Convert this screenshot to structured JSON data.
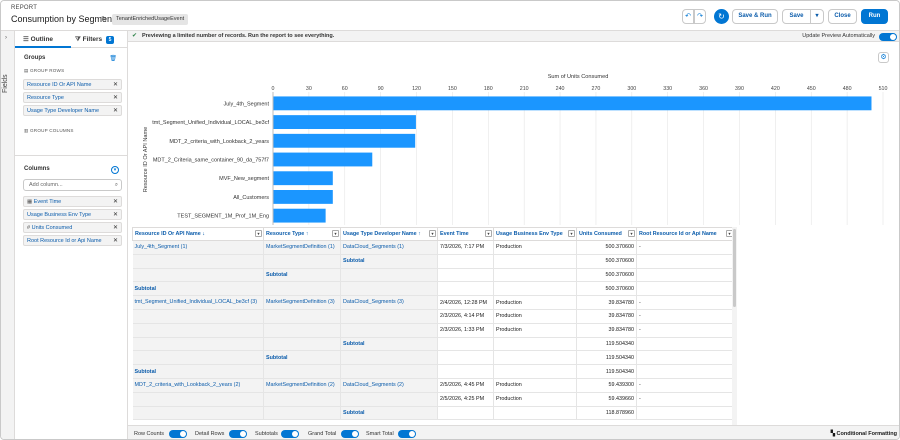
{
  "header": {
    "eyebrow": "REPORT",
    "title": "Consumption by Segment",
    "report_type": "TenantEnrichedUsageEvent",
    "save_run_label": "Save & Run",
    "save_label": "Save",
    "close_label": "Close",
    "run_label": "Run"
  },
  "rail": {
    "label": "Fields"
  },
  "panel": {
    "tab_outline": "Outline",
    "tab_filters": "Filters",
    "filters_count": "5",
    "groups_title": "Groups",
    "group_rows_label": "GROUP ROWS",
    "group_rows": [
      {
        "label": "Resource ID Or API Name"
      },
      {
        "label": "Resource Type"
      },
      {
        "label": "Usage Type Developer Name"
      }
    ],
    "group_columns_label": "GROUP COLUMNS",
    "columns_title": "Columns",
    "add_column_placeholder": "Add column...",
    "columns": [
      {
        "label": "Event Time",
        "type_icon": "calendar-icon"
      },
      {
        "label": "Usage Business Env Type",
        "type_icon": ""
      },
      {
        "label": "Units Consumed",
        "type_icon": "number-icon"
      },
      {
        "label": "Root Resource Id or Api Name",
        "type_icon": ""
      }
    ]
  },
  "preview": {
    "message": "Previewing a limited number of records. Run the report to see everything.",
    "update_label": "Update Preview Automatically"
  },
  "colors": {
    "brand": "#0176d3",
    "bar": "#1b96ff",
    "link": "#0b5cab"
  },
  "chart_data": {
    "type": "bar",
    "orientation": "horizontal",
    "title": "Sum of Units Consumed",
    "ylabel": "Resource ID Or API Name",
    "xlim": [
      0,
      510
    ],
    "xticks": [
      0,
      30,
      60,
      90,
      120,
      150,
      180,
      210,
      240,
      270,
      300,
      330,
      360,
      390,
      420,
      450,
      480,
      510
    ],
    "categories": [
      "July_4th_Segment",
      "tmt_Segment_Unified_Individual_LOCAL_be3cf",
      "MDT_2_criteria_with_Lookback_2_years",
      "MDT_2_Criteria_same_container_90_da_757f7",
      "MVF_New_segment",
      "All_Customers",
      "TEST_SEGMENT_1M_Prof_1M_Eng"
    ],
    "values": [
      500.37,
      119.5,
      118.88,
      83,
      50,
      50,
      44
    ],
    "grid": true
  },
  "table": {
    "headers": [
      "Resource ID Or API Name ↓",
      "Resource Type ↑",
      "Usage Type Developer Name ↑",
      "Event Time",
      "Usage Business Env Type",
      "Units Consumed",
      "Root Resource Id or Api Name"
    ],
    "rows": [
      [
        "July_4th_Segment (1)",
        "MarketSegmentDefinition (1)",
        "DataCloud_Segments (1)",
        "7/3/2026, 7:17 PM",
        "Production",
        "500.370600",
        "-"
      ],
      [
        "",
        "",
        "Subtotal",
        "",
        "",
        "500.370600",
        ""
      ],
      [
        "",
        "Subtotal",
        "",
        "",
        "",
        "500.370600",
        ""
      ],
      [
        "Subtotal",
        "",
        "",
        "",
        "",
        "500.370600",
        ""
      ],
      [
        "tmt_Segment_Unified_Individual_LOCAL_be3cf (3)",
        "MarketSegmentDefinition (3)",
        "DataCloud_Segments (3)",
        "2/4/2026, 12:28 PM",
        "Production",
        "39.834780",
        "-"
      ],
      [
        "",
        "",
        "",
        "2/3/2026, 4:14 PM",
        "Production",
        "39.834780",
        "-"
      ],
      [
        "",
        "",
        "",
        "2/3/2026, 1:33 PM",
        "Production",
        "39.834780",
        "-"
      ],
      [
        "",
        "",
        "Subtotal",
        "",
        "",
        "119.504340",
        ""
      ],
      [
        "",
        "Subtotal",
        "",
        "",
        "",
        "119.504340",
        ""
      ],
      [
        "Subtotal",
        "",
        "",
        "",
        "",
        "119.504340",
        ""
      ],
      [
        "MDT_2_criteria_with_Lookback_2_years (2)",
        "MarketSegmentDefinition (2)",
        "DataCloud_Segments (2)",
        "2/5/2026, 4:45 PM",
        "Production",
        "59.439300",
        "-"
      ],
      [
        "",
        "",
        "",
        "2/5/2026, 4:25 PM",
        "Production",
        "59.439660",
        "-"
      ],
      [
        "",
        "",
        "Subtotal",
        "",
        "",
        "118.878960",
        ""
      ]
    ]
  },
  "footer": {
    "row_counts": "Row Counts",
    "detail_rows": "Detail Rows",
    "subtotals": "Subtotals",
    "grand_total": "Grand Total",
    "smart_total": "Smart Total",
    "conditional_formatting": "Conditional Formatting"
  }
}
